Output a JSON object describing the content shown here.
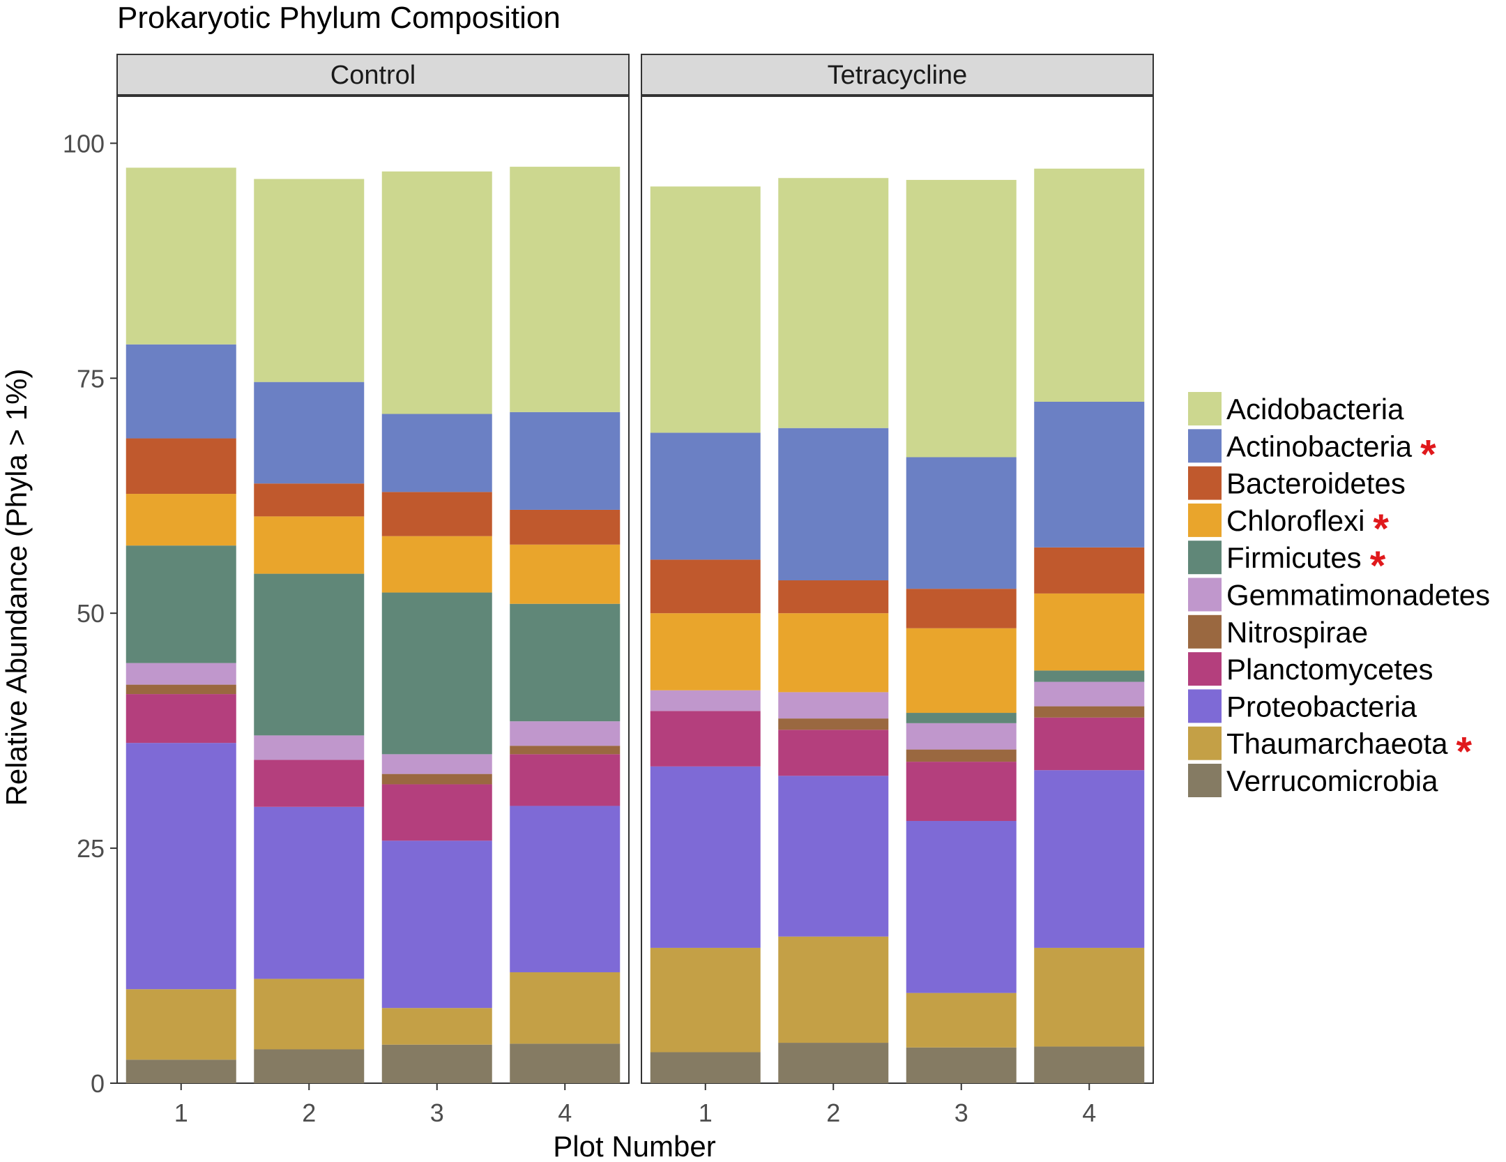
{
  "chart_data": {
    "type": "bar",
    "stacked": true,
    "title": "Prokaryotic Phylum Composition",
    "xlabel": "Plot Number",
    "ylabel": "Relative Abundance (Phyla > 1%)",
    "ylim": [
      0,
      105
    ],
    "yticks": [
      0,
      25,
      50,
      75,
      100
    ],
    "categories": [
      "1",
      "2",
      "3",
      "4"
    ],
    "facets": [
      "Control",
      "Tetracycline"
    ],
    "legend_position": "right",
    "series": [
      {
        "name": "Verrucomicrobia",
        "color": "#857b63",
        "values": [
          [
            2.5,
            3.6,
            4.1,
            4.2
          ],
          [
            3.3,
            4.3,
            3.8,
            3.9
          ]
        ]
      },
      {
        "name": "Thaumarchaeota",
        "color": "#c4a046",
        "starred": true,
        "values": [
          [
            7.5,
            7.5,
            3.9,
            7.6
          ],
          [
            11.1,
            11.3,
            5.8,
            10.5
          ]
        ]
      },
      {
        "name": "Proteobacteria",
        "color": "#7e6ad6",
        "values": [
          [
            26.2,
            18.3,
            17.8,
            17.7
          ],
          [
            19.3,
            17.1,
            18.3,
            18.9
          ]
        ]
      },
      {
        "name": "Planctomycetes",
        "color": "#b43f7d",
        "values": [
          [
            5.2,
            5.0,
            6.0,
            5.5
          ],
          [
            5.9,
            4.9,
            6.3,
            5.6
          ]
        ]
      },
      {
        "name": "Nitrospirae",
        "color": "#9a6840",
        "values": [
          [
            1.0,
            0,
            1.1,
            0.9
          ],
          [
            0,
            1.2,
            1.3,
            1.2
          ]
        ]
      },
      {
        "name": "Gemmatimonadetes",
        "color": "#c097cc",
        "values": [
          [
            2.3,
            2.6,
            2.1,
            2.6
          ],
          [
            2.2,
            2.8,
            2.8,
            2.6
          ]
        ]
      },
      {
        "name": "Firmicutes",
        "color": "#608778",
        "starred": true,
        "values": [
          [
            12.5,
            17.2,
            17.2,
            12.5
          ],
          [
            0,
            0,
            1.1,
            1.2
          ]
        ]
      },
      {
        "name": "Chloroflexi",
        "color": "#e9a52c",
        "starred": true,
        "values": [
          [
            5.5,
            6.1,
            6.0,
            6.3
          ],
          [
            8.2,
            8.4,
            9.0,
            8.2
          ]
        ]
      },
      {
        "name": "Bacteroidetes",
        "color": "#c0592d",
        "values": [
          [
            5.9,
            3.5,
            4.7,
            3.7
          ],
          [
            5.7,
            3.5,
            4.2,
            4.9
          ]
        ]
      },
      {
        "name": "Actinobacteria",
        "color": "#6b80c4",
        "starred": true,
        "values": [
          [
            10.0,
            10.8,
            8.3,
            10.4
          ],
          [
            13.5,
            16.2,
            14.0,
            15.5
          ]
        ]
      },
      {
        "name": "Acidobacteria",
        "color": "#ccd78f",
        "values": [
          [
            18.8,
            21.6,
            25.8,
            26.1
          ],
          [
            26.2,
            26.6,
            29.5,
            24.8
          ]
        ]
      }
    ],
    "legend_order": [
      "Acidobacteria",
      "Actinobacteria",
      "Bacteroidetes",
      "Chloroflexi",
      "Firmicutes",
      "Gemmatimonadetes",
      "Nitrospirae",
      "Planctomycetes",
      "Proteobacteria",
      "Thaumarchaeota",
      "Verrucomicrobia"
    ],
    "star_symbol": "*",
    "panel_background": "#ffffff",
    "strip_background": "#d9d9d9"
  }
}
